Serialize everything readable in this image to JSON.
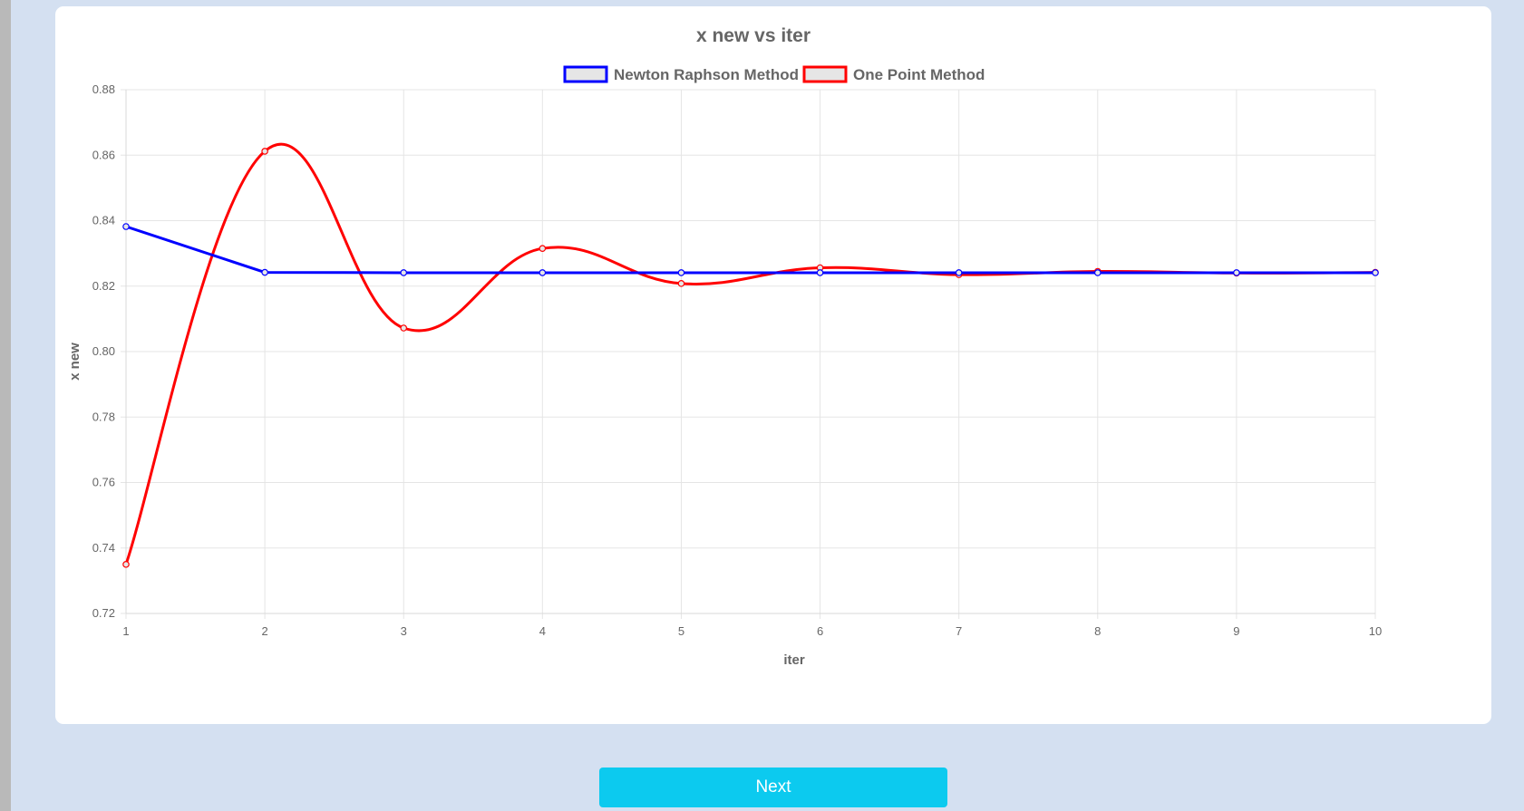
{
  "chart_data": {
    "type": "line",
    "title": "x new vs iter",
    "xlabel": "iter",
    "ylabel": "x new",
    "x": [
      1,
      2,
      3,
      4,
      5,
      6,
      7,
      8,
      9,
      10
    ],
    "x_tick_labels": [
      "1",
      "2",
      "3",
      "4",
      "5",
      "6",
      "7",
      "8",
      "9",
      "10"
    ],
    "y_tick_labels": [
      "0.72",
      "0.74",
      "0.76",
      "0.78",
      "0.80",
      "0.82",
      "0.84",
      "0.86",
      "0.88"
    ],
    "y_ticks": [
      0.72,
      0.74,
      0.76,
      0.78,
      0.8,
      0.82,
      0.84,
      0.86,
      0.88
    ],
    "ylim": [
      0.72,
      0.88
    ],
    "xlim": [
      1,
      10
    ],
    "grid": true,
    "legend_position": "top-center",
    "series": [
      {
        "name": "Newton Raphson Method",
        "color": "#0000ff",
        "curve": "straight",
        "values": [
          0.8382,
          0.8242,
          0.8241,
          0.8241,
          0.8241,
          0.8241,
          0.8241,
          0.8241,
          0.8241,
          0.8241
        ]
      },
      {
        "name": "One Point Method",
        "color": "#ff0000",
        "curve": "smooth",
        "values": [
          0.735,
          0.8612,
          0.8072,
          0.8315,
          0.8208,
          0.8256,
          0.8235,
          0.8245,
          0.824,
          0.8242
        ]
      }
    ]
  },
  "colors": {
    "page_background": "#d4e0f1",
    "card_background": "#ffffff",
    "grid": "#e5e5e5",
    "text": "#666666",
    "legend_fill": "#e6e6e6",
    "button": "#0ccaef"
  },
  "next_button": {
    "label": "Next"
  }
}
